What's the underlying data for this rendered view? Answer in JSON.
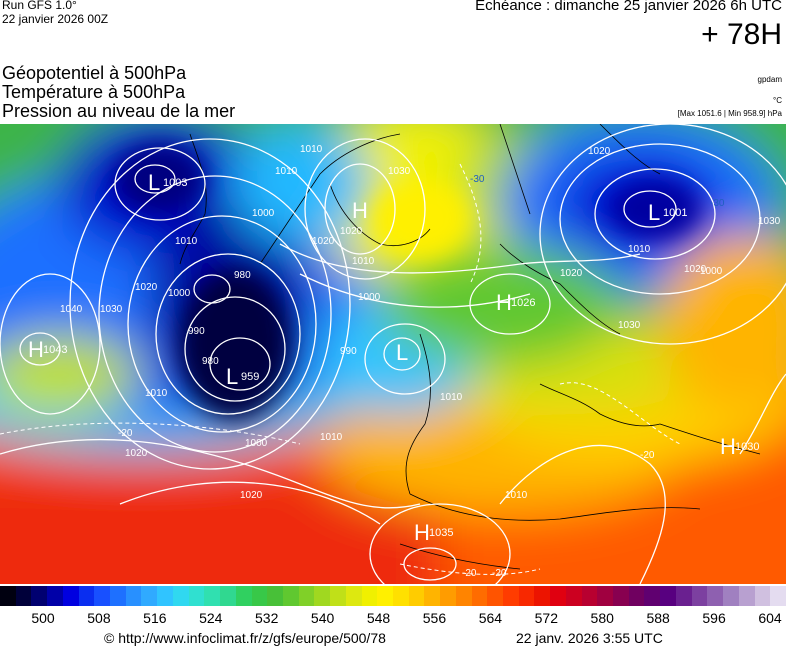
{
  "header": {
    "run_title": "Run GFS 1.0°",
    "run_date": "22 janvier 2026 00Z",
    "echeance": "Echéance : dimanche 25 janvier 2026 6h UTC",
    "forecast_hour": "+ 78H"
  },
  "layers": [
    "Géopotentiel à 500hPa",
    "Température à 500hPa",
    "Pression au niveau de la mer"
  ],
  "units": {
    "gpdam": "gpdam",
    "celsius": "°C",
    "maxmin": "[Max 1051.6 | Min 958.9] hPa"
  },
  "pressure_centers": [
    {
      "type": "L",
      "value": "1003"
    },
    {
      "type": "H",
      "value": ""
    },
    {
      "type": "L",
      "value": "1001"
    },
    {
      "type": "L",
      "value": "959"
    },
    {
      "type": "L",
      "value": ""
    },
    {
      "type": "H",
      "value": "1026"
    },
    {
      "type": "H",
      "value": "1043"
    },
    {
      "type": "H",
      "value": "1030"
    },
    {
      "type": "H",
      "value": "1035"
    }
  ],
  "isobar_labels": [
    "1010",
    "1020",
    "1000",
    "1010",
    "1020",
    "1030",
    "1020",
    "1010",
    "1020",
    "1010",
    "1030",
    "1000",
    "1010",
    "980",
    "1000",
    "990",
    "980",
    "1010",
    "1000",
    "990",
    "1020",
    "1030",
    "1040",
    "1010",
    "1020",
    "1000",
    "1010",
    "1020",
    "1020",
    "1010",
    "1030"
  ],
  "isotherm_labels": [
    "-30",
    "-30",
    "-20",
    "-20",
    "-20",
    "-20"
  ],
  "colorbar": {
    "ticks": [
      "500",
      "508",
      "516",
      "524",
      "532",
      "540",
      "548",
      "556",
      "564",
      "572",
      "580",
      "588",
      "596",
      "604"
    ],
    "colors": [
      "#000010",
      "#00003a",
      "#000070",
      "#0000a8",
      "#0000e0",
      "#0a2ef0",
      "#1850ff",
      "#1e70ff",
      "#2890ff",
      "#30aaff",
      "#30c4ff",
      "#30d8f0",
      "#30e0d0",
      "#30e0b0",
      "#30d890",
      "#30d060",
      "#38c848",
      "#48c038",
      "#60c830",
      "#80d028",
      "#a0d820",
      "#c0e018",
      "#dde810",
      "#f0f000",
      "#fff000",
      "#ffe000",
      "#ffcc00",
      "#ffb400",
      "#ff9c00",
      "#ff8400",
      "#ff6c00",
      "#ff5400",
      "#ff3c00",
      "#f82800",
      "#ec1400",
      "#e00010",
      "#cc0020",
      "#b80030",
      "#a00040",
      "#880050",
      "#700060",
      "#600070",
      "#580080",
      "#6a2090",
      "#7c40a0",
      "#8e60b0",
      "#a080c0",
      "#b8a0d0",
      "#d0c0e0",
      "#e4dcf0"
    ]
  },
  "footer": {
    "url": "© http://www.infoclimat.fr/z/gfs/europe/500/78",
    "date": "22 janv. 2026  3:55 UTC"
  }
}
